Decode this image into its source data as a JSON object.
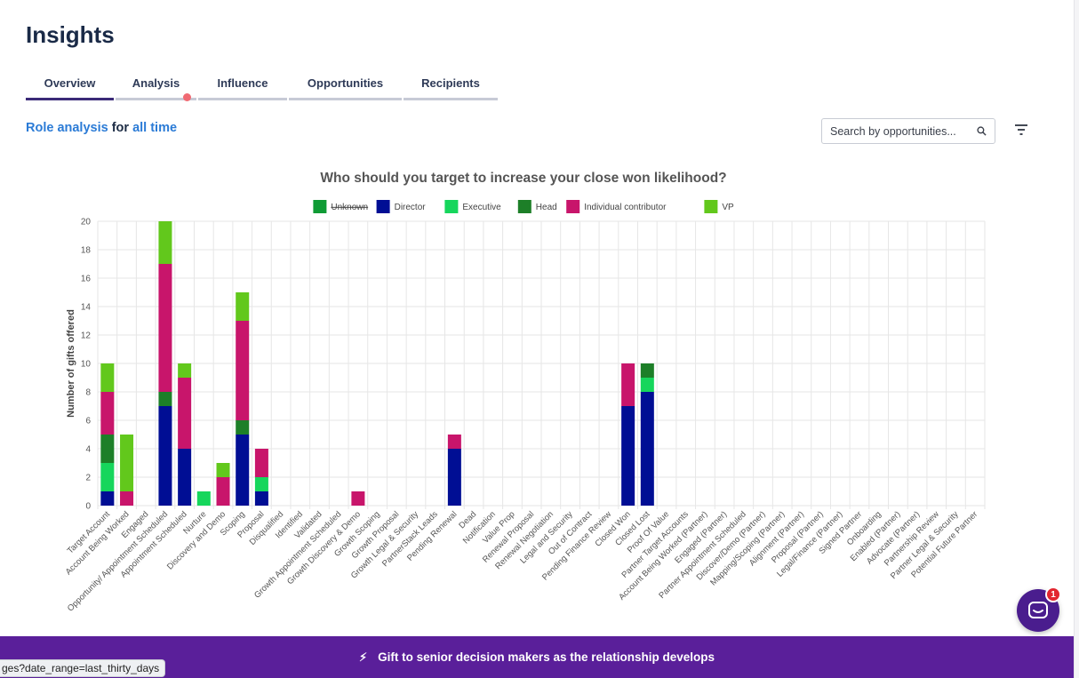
{
  "page": {
    "title": "Insights"
  },
  "tabs": [
    {
      "label": "Overview",
      "active": true,
      "has_notification": false
    },
    {
      "label": "Analysis",
      "active": false,
      "has_notification": true
    },
    {
      "label": "Influence",
      "active": false,
      "has_notification": false
    },
    {
      "label": "Opportunities",
      "active": false,
      "has_notification": false
    },
    {
      "label": "Recipients",
      "active": false,
      "has_notification": false
    }
  ],
  "subtitle": {
    "part1": "Role analysis",
    "part2": " for ",
    "part3": "all time"
  },
  "search": {
    "placeholder": "Search by opportunities...",
    "value": "",
    "icon": "search-icon"
  },
  "filter": {
    "icon": "filter-icon"
  },
  "colors": {
    "accent": "#3b2a78",
    "link": "#2b7bd6",
    "banner": "#5a1f9a",
    "notification": "#f06a73"
  },
  "chart_data": {
    "type": "bar",
    "stacked": true,
    "title": "Who should you target to increase your close won likelihood?",
    "xlabel": "",
    "ylabel": "Number of gifts offered",
    "ylim": [
      0,
      20
    ],
    "yticks": [
      0,
      2,
      4,
      6,
      8,
      10,
      12,
      14,
      16,
      18,
      20
    ],
    "grid": true,
    "legend_position": "top-center",
    "categories": [
      "Target Account",
      "Account Being Worked",
      "Engaged",
      "Opportunity/ Appointment Scheduled",
      "Appointment Scheduled",
      "Nurture",
      "Discovery and Demo",
      "Scoping",
      "Proposal",
      "Disqualified",
      "Identified",
      "Validated",
      "Growth Appointment Scheduled",
      "Growth Discovery & Demo",
      "Growth Scoping",
      "Growth Proposal",
      "Growth Legal & Security",
      "PartnerStack Leads",
      "Pending Renewal",
      "Dead",
      "Notification",
      "Value Prop",
      "Renewal Proposal",
      "Renewal Negotiation",
      "Legal and Security",
      "Out of Contract",
      "Pending Finance Review",
      "Closed Won",
      "Closed Lost",
      "Proof Of Value",
      "Partner Target Accounts",
      "Account Being Worked (Partner)",
      "Engaged (Partner)",
      "Partner Appointment Scheduled",
      "Discover/Demo (Partner)",
      "Mapping/Scoping (Partner)",
      "Alignment (Partner)",
      "Proposal (Partner)",
      "Legal/Finance (Partner)",
      "Signed Partner",
      "Onboarding",
      "Enabled (Partner)",
      "Advocate (Partner)",
      "Partnership Review",
      "Partner Legal & Security",
      "Potential Future Partner"
    ],
    "series": [
      {
        "name": "Unknown",
        "color": "#0f9b35",
        "hidden": true,
        "values": [
          0,
          0,
          0,
          0,
          0,
          0,
          0,
          0,
          0,
          0,
          0,
          0,
          0,
          0,
          0,
          0,
          0,
          0,
          0,
          0,
          0,
          0,
          0,
          0,
          0,
          0,
          0,
          0,
          0,
          0,
          0,
          0,
          0,
          0,
          0,
          0,
          0,
          0,
          0,
          0,
          0,
          0,
          0,
          0,
          0,
          0
        ]
      },
      {
        "name": "Director",
        "color": "#000e94",
        "hidden": false,
        "values": [
          1,
          0,
          0,
          7,
          4,
          0,
          0,
          5,
          1,
          0,
          0,
          0,
          0,
          0,
          0,
          0,
          0,
          0,
          4,
          0,
          0,
          0,
          0,
          0,
          0,
          0,
          0,
          7,
          8,
          0,
          0,
          0,
          0,
          0,
          0,
          0,
          0,
          0,
          0,
          0,
          0,
          0,
          0,
          0,
          0,
          0
        ]
      },
      {
        "name": "Executive",
        "color": "#16d65c",
        "hidden": false,
        "values": [
          2,
          0,
          0,
          0,
          0,
          1,
          0,
          0,
          1,
          0,
          0,
          0,
          0,
          0,
          0,
          0,
          0,
          0,
          0,
          0,
          0,
          0,
          0,
          0,
          0,
          0,
          0,
          0,
          1,
          0,
          0,
          0,
          0,
          0,
          0,
          0,
          0,
          0,
          0,
          0,
          0,
          0,
          0,
          0,
          0,
          0
        ]
      },
      {
        "name": "Head",
        "color": "#1d7f28",
        "hidden": false,
        "values": [
          2,
          0,
          0,
          1,
          0,
          0,
          0,
          1,
          0,
          0,
          0,
          0,
          0,
          0,
          0,
          0,
          0,
          0,
          0,
          0,
          0,
          0,
          0,
          0,
          0,
          0,
          0,
          0,
          1,
          0,
          0,
          0,
          0,
          0,
          0,
          0,
          0,
          0,
          0,
          0,
          0,
          0,
          0,
          0,
          0,
          0
        ]
      },
      {
        "name": "Individual contributor",
        "color": "#c8156b",
        "hidden": false,
        "values": [
          3,
          1,
          0,
          9,
          5,
          0,
          2,
          7,
          2,
          0,
          0,
          0,
          0,
          1,
          0,
          0,
          0,
          0,
          1,
          0,
          0,
          0,
          0,
          0,
          0,
          0,
          0,
          3,
          0,
          0,
          0,
          0,
          0,
          0,
          0,
          0,
          0,
          0,
          0,
          0,
          0,
          0,
          0,
          0,
          0,
          0
        ]
      },
      {
        "name": "VP",
        "color": "#62c81c",
        "hidden": false,
        "values": [
          2,
          4,
          0,
          3,
          1,
          0,
          1,
          2,
          0,
          0,
          0,
          0,
          0,
          0,
          0,
          0,
          0,
          0,
          0,
          0,
          0,
          0,
          0,
          0,
          0,
          0,
          0,
          0,
          0,
          0,
          0,
          0,
          0,
          0,
          0,
          0,
          0,
          0,
          0,
          0,
          0,
          0,
          0,
          0,
          0,
          0
        ]
      }
    ]
  },
  "banner": {
    "text": "Gift to senior decision makers as the relationship develops",
    "icon": "bolt-icon"
  },
  "status_bar": {
    "url": "ges?date_range=last_thirty_days"
  },
  "chat": {
    "icon": "chat-icon",
    "badge_count": "1"
  }
}
